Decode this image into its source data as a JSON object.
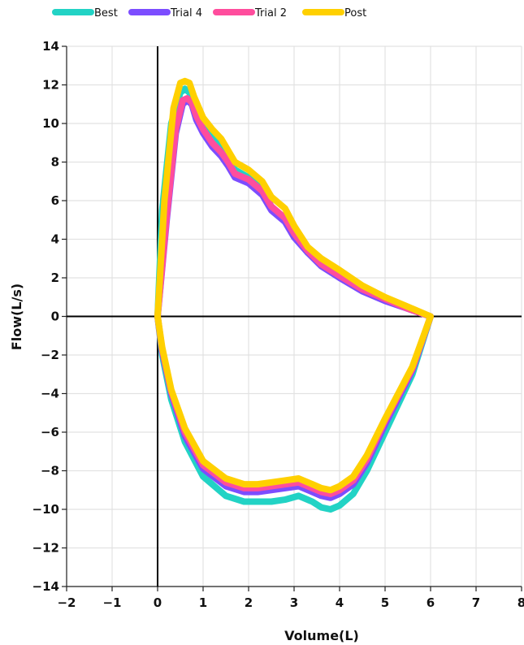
{
  "chart_data": {
    "type": "line",
    "title": "",
    "xlabel": "Volume(L)",
    "ylabel": "Flow(L/s)",
    "xlim": [
      -2,
      8
    ],
    "ylim": [
      -14,
      14
    ],
    "x_ticks": [
      -2,
      -1,
      0,
      1,
      2,
      3,
      4,
      5,
      6,
      7,
      8
    ],
    "y_ticks": [
      -14,
      -12,
      -10,
      -8,
      -6,
      -4,
      -2,
      0,
      2,
      4,
      6,
      8,
      10,
      12,
      14
    ],
    "grid": true,
    "legend_position": "top-left",
    "series": [
      {
        "name": "Best",
        "color": "#22d3c5",
        "x": [
          0,
          0.1,
          0.3,
          0.5,
          0.6,
          0.7,
          0.8,
          1.0,
          1.2,
          1.4,
          1.55,
          1.7,
          2.0,
          2.3,
          2.5,
          2.8,
          3.0,
          3.3,
          3.6,
          4.0,
          4.5,
          5.0,
          5.5,
          6.0,
          5.6,
          5.0,
          4.6,
          4.3,
          4.0,
          3.8,
          3.6,
          3.4,
          3.1,
          2.8,
          2.5,
          2.2,
          1.9,
          1.5,
          1.0,
          0.6,
          0.3,
          0.1,
          0
        ],
        "y": [
          0,
          5.5,
          10.0,
          11.6,
          11.8,
          11.6,
          11.0,
          10.0,
          9.3,
          8.8,
          8.3,
          7.6,
          7.2,
          6.6,
          5.7,
          5.0,
          4.2,
          3.3,
          2.7,
          2.1,
          1.4,
          0.9,
          0.4,
          0.0,
          -3.0,
          -6.0,
          -8.0,
          -9.2,
          -9.8,
          -10.0,
          -9.9,
          -9.6,
          -9.3,
          -9.5,
          -9.6,
          -9.6,
          -9.6,
          -9.3,
          -8.3,
          -6.5,
          -4.3,
          -2.0,
          0
        ]
      },
      {
        "name": "Trial 4",
        "color": "#7c4dff",
        "x": [
          0,
          0.2,
          0.4,
          0.55,
          0.65,
          0.75,
          0.85,
          1.0,
          1.2,
          1.4,
          1.55,
          1.7,
          2.0,
          2.3,
          2.5,
          2.8,
          3.0,
          3.3,
          3.6,
          4.0,
          4.5,
          5.0,
          5.5,
          6.0,
          5.6,
          5.0,
          4.6,
          4.3,
          4.0,
          3.8,
          3.6,
          3.4,
          3.1,
          2.8,
          2.5,
          2.2,
          1.9,
          1.5,
          1.0,
          0.6,
          0.3,
          0.1,
          0
        ],
        "y": [
          0,
          5.0,
          9.5,
          11.0,
          11.2,
          11.0,
          10.2,
          9.5,
          8.8,
          8.3,
          7.8,
          7.2,
          6.9,
          6.3,
          5.5,
          4.9,
          4.1,
          3.3,
          2.6,
          2.0,
          1.3,
          0.8,
          0.4,
          0.0,
          -2.8,
          -5.6,
          -7.6,
          -8.7,
          -9.2,
          -9.4,
          -9.3,
          -9.1,
          -8.8,
          -8.9,
          -9.0,
          -9.1,
          -9.1,
          -8.8,
          -7.9,
          -6.2,
          -4.0,
          -1.8,
          0
        ]
      },
      {
        "name": "Trial 2",
        "color": "#ff4d9d",
        "x": [
          0,
          0.2,
          0.4,
          0.55,
          0.65,
          0.75,
          0.85,
          1.0,
          1.2,
          1.4,
          1.55,
          1.7,
          2.0,
          2.3,
          2.5,
          2.8,
          3.0,
          3.3,
          3.6,
          4.0,
          4.5,
          5.0,
          5.5,
          6.0,
          5.6,
          5.0,
          4.6,
          4.3,
          4.0,
          3.8,
          3.6,
          3.4,
          3.1,
          2.8,
          2.5,
          2.2,
          1.9,
          1.5,
          1.0,
          0.6,
          0.3,
          0.1,
          0
        ],
        "y": [
          0,
          5.2,
          9.7,
          11.2,
          11.3,
          11.1,
          10.4,
          9.7,
          9.0,
          8.5,
          8.0,
          7.4,
          7.1,
          6.5,
          5.7,
          5.1,
          4.3,
          3.4,
          2.7,
          2.1,
          1.4,
          0.9,
          0.4,
          0.0,
          -2.7,
          -5.4,
          -7.4,
          -8.5,
          -9.0,
          -9.2,
          -9.1,
          -8.9,
          -8.6,
          -8.7,
          -8.8,
          -8.9,
          -8.9,
          -8.6,
          -7.7,
          -6.0,
          -3.9,
          -1.7,
          0
        ]
      },
      {
        "name": "Post",
        "color": "#ffd000",
        "x": [
          0,
          0.15,
          0.35,
          0.5,
          0.6,
          0.7,
          0.8,
          1.0,
          1.2,
          1.4,
          1.55,
          1.7,
          2.0,
          2.3,
          2.5,
          2.8,
          3.0,
          3.3,
          3.6,
          4.0,
          4.5,
          5.0,
          5.5,
          6.0,
          5.6,
          5.0,
          4.6,
          4.3,
          4.0,
          3.8,
          3.6,
          3.4,
          3.1,
          2.8,
          2.5,
          2.2,
          1.9,
          1.5,
          1.0,
          0.6,
          0.3,
          0.1,
          0
        ],
        "y": [
          0,
          6.0,
          10.8,
          12.1,
          12.2,
          12.1,
          11.4,
          10.3,
          9.7,
          9.2,
          8.6,
          8.0,
          7.6,
          7.0,
          6.2,
          5.6,
          4.7,
          3.6,
          3.0,
          2.4,
          1.6,
          1.0,
          0.5,
          0.0,
          -2.6,
          -5.3,
          -7.2,
          -8.3,
          -8.8,
          -9.0,
          -8.9,
          -8.7,
          -8.4,
          -8.5,
          -8.6,
          -8.7,
          -8.7,
          -8.4,
          -7.5,
          -5.8,
          -3.8,
          -1.6,
          0
        ]
      }
    ]
  }
}
